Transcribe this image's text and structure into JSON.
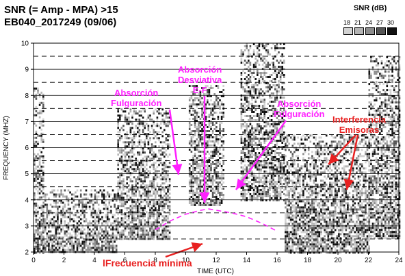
{
  "title_line1": "SNR (= Amp - MPA) >15",
  "title_line2": "EB040_2017249 (09/06)",
  "legend": {
    "title": "SNR (dB)",
    "labels": [
      "18",
      "21",
      "24",
      "27",
      "30"
    ],
    "colors": [
      "#d2d2d2",
      "#b4b4b4",
      "#8c8c8c",
      "#555555",
      "#111111"
    ]
  },
  "annotations": {
    "absorcion_fulguracion_left": [
      "Absorción",
      "Fulguración"
    ],
    "absorcion_desviativa": [
      "Absorción",
      "Desviativa",
      "E-F"
    ],
    "absorcion_fulguracion_right": [
      "Absorción",
      "Fulguración"
    ],
    "interferencia": [
      "Interferencia",
      "Emisoras"
    ],
    "frecuencia_minima": "lFrecuencia mínima"
  },
  "colors": {
    "annotation_magenta": "#ff1fff",
    "annotation_red": "#e82020"
  },
  "chart_data": {
    "type": "heatmap",
    "title": "SNR (= Amp - MPA) >15",
    "subtitle": "EB040_2017249 (09/06)",
    "xlabel": "TIME (UTC)",
    "ylabel": "FREQUENCY (MHZ)",
    "xlim": [
      0,
      24
    ],
    "ylim": [
      2,
      10
    ],
    "xticks": [
      "0",
      "2",
      "4",
      "6",
      "8",
      "10",
      "12",
      "14",
      "16",
      "18",
      "20",
      "22",
      "24"
    ],
    "yticks": [
      "2",
      "3",
      "4",
      "5",
      "6",
      "7",
      "8",
      "9",
      "10"
    ],
    "colorbar": {
      "label": "SNR (dB)",
      "levels": [
        18,
        21,
        24,
        27,
        30
      ]
    },
    "minimum_frequency_curve": {
      "x": [
        8,
        9,
        10,
        11,
        11.5,
        12,
        13,
        14,
        15,
        16
      ],
      "y": [
        2.85,
        3.2,
        3.45,
        3.6,
        3.65,
        3.6,
        3.5,
        3.35,
        3.1,
        2.8
      ]
    },
    "echo_regions": [
      {
        "x": [
          0,
          0.6
        ],
        "y": [
          2,
          8.3
        ]
      },
      {
        "x": [
          0.6,
          5.5
        ],
        "y": [
          2,
          4.4
        ]
      },
      {
        "x": [
          5.5,
          9
        ],
        "y": [
          2.5,
          7.5
        ]
      },
      {
        "x": [
          10.2,
          12.5
        ],
        "y": [
          3.8,
          8.4
        ]
      },
      {
        "x": [
          13.6,
          16.5
        ],
        "y": [
          4,
          10
        ]
      },
      {
        "x": [
          16.5,
          22
        ],
        "y": [
          2,
          6.5
        ]
      },
      {
        "x": [
          22,
          24
        ],
        "y": [
          2.5,
          9.5
        ]
      }
    ]
  }
}
